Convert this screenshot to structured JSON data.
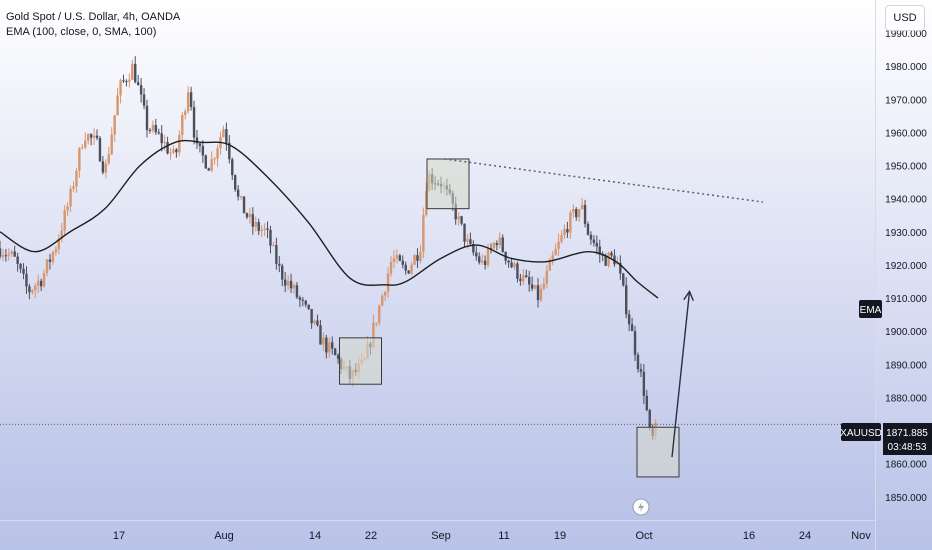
{
  "legend": {
    "symbol_line": "Gold Spot / U.S. Dollar, 4h, OANDA",
    "indicator_line": "EMA (100, close, 0, SMA, 100)"
  },
  "currency_label": "USD",
  "price_scale_labels": {
    "ema": "EMA",
    "symbol": "XAUUSD",
    "last_price": "1871.885",
    "countdown": "03:48:53"
  },
  "colors": {
    "candle_up": "#d9956b",
    "candle_down": "#4a4f5c",
    "ema_line": "#1f1f1f",
    "trendline": "#5a6070",
    "box_fill": "#d6d8c8",
    "background_top": "#ffffff",
    "background_bottom": "#b9c2e8",
    "axis_text": "#131722",
    "price_tag_bg": "#131722"
  },
  "chart_data": {
    "type": "candlestick",
    "title": "Gold Spot / U.S. Dollar, 4h, OANDA",
    "y_axis": {
      "side": "right",
      "range": [
        1843,
        2000
      ],
      "ticks": [
        "1990.000",
        "1980.000",
        "1970.000",
        "1960.000",
        "1950.000",
        "1940.000",
        "1930.000",
        "1920.000",
        "1910.000",
        "1900.000",
        "1890.000",
        "1880.000",
        "1860.000",
        "1850.000"
      ],
      "tick_values": [
        1990,
        1980,
        1970,
        1960,
        1950,
        1940,
        1930,
        1920,
        1910,
        1900,
        1890,
        1880,
        1860,
        1850
      ]
    },
    "x_axis": {
      "tick_labels": [
        "17",
        "Aug",
        "14",
        "22",
        "Sep",
        "11",
        "19",
        "Oct",
        "16",
        "24",
        "Nov"
      ],
      "tick_days": [
        17,
        32,
        45,
        53,
        63,
        72,
        80,
        92,
        107,
        115,
        123
      ],
      "range_days": [
        0,
        125
      ]
    },
    "last_price": 1871.885,
    "close_path": [
      {
        "day": 0,
        "price": 1925
      },
      {
        "day": 2,
        "price": 1922
      },
      {
        "day": 4,
        "price": 1912
      },
      {
        "day": 6,
        "price": 1916
      },
      {
        "day": 8,
        "price": 1926
      },
      {
        "day": 10,
        "price": 1940
      },
      {
        "day": 12,
        "price": 1960
      },
      {
        "day": 14,
        "price": 1956
      },
      {
        "day": 15,
        "price": 1948
      },
      {
        "day": 17,
        "price": 1973
      },
      {
        "day": 19,
        "price": 1980
      },
      {
        "day": 21,
        "price": 1962
      },
      {
        "day": 23,
        "price": 1958
      },
      {
        "day": 25,
        "price": 1952
      },
      {
        "day": 27,
        "price": 1975
      },
      {
        "day": 28,
        "price": 1955
      },
      {
        "day": 30,
        "price": 1950
      },
      {
        "day": 32,
        "price": 1962
      },
      {
        "day": 34,
        "price": 1940
      },
      {
        "day": 36,
        "price": 1932
      },
      {
        "day": 38,
        "price": 1930
      },
      {
        "day": 40,
        "price": 1918
      },
      {
        "day": 42,
        "price": 1912
      },
      {
        "day": 44,
        "price": 1905
      },
      {
        "day": 46,
        "price": 1897
      },
      {
        "day": 48,
        "price": 1892
      },
      {
        "day": 50,
        "price": 1886
      },
      {
        "day": 52,
        "price": 1890
      },
      {
        "day": 54,
        "price": 1906
      },
      {
        "day": 56,
        "price": 1922
      },
      {
        "day": 58,
        "price": 1918
      },
      {
        "day": 60,
        "price": 1925
      },
      {
        "day": 61,
        "price": 1947
      },
      {
        "day": 63,
        "price": 1945
      },
      {
        "day": 65,
        "price": 1936
      },
      {
        "day": 67,
        "price": 1925
      },
      {
        "day": 69,
        "price": 1920
      },
      {
        "day": 71,
        "price": 1928
      },
      {
        "day": 73,
        "price": 1920
      },
      {
        "day": 75,
        "price": 1915
      },
      {
        "day": 77,
        "price": 1910
      },
      {
        "day": 79,
        "price": 1922
      },
      {
        "day": 81,
        "price": 1932
      },
      {
        "day": 83,
        "price": 1938
      },
      {
        "day": 84,
        "price": 1930
      },
      {
        "day": 86,
        "price": 1922
      },
      {
        "day": 88,
        "price": 1922
      },
      {
        "day": 90,
        "price": 1902
      },
      {
        "day": 92,
        "price": 1882
      },
      {
        "day": 93,
        "price": 1866
      },
      {
        "day": 94,
        "price": 1871.885
      }
    ],
    "ema": {
      "name": "EMA",
      "points": [
        {
          "day": 0,
          "price": 1930
        },
        {
          "day": 5,
          "price": 1924
        },
        {
          "day": 10,
          "price": 1930
        },
        {
          "day": 15,
          "price": 1937
        },
        {
          "day": 20,
          "price": 1950
        },
        {
          "day": 25,
          "price": 1957
        },
        {
          "day": 29,
          "price": 1957
        },
        {
          "day": 33,
          "price": 1956
        },
        {
          "day": 38,
          "price": 1947
        },
        {
          "day": 44,
          "price": 1933
        },
        {
          "day": 50,
          "price": 1916
        },
        {
          "day": 55,
          "price": 1914
        },
        {
          "day": 58,
          "price": 1915
        },
        {
          "day": 63,
          "price": 1922
        },
        {
          "day": 68,
          "price": 1926
        },
        {
          "day": 73,
          "price": 1922
        },
        {
          "day": 78,
          "price": 1921
        },
        {
          "day": 84,
          "price": 1924
        },
        {
          "day": 88,
          "price": 1921
        },
        {
          "day": 91,
          "price": 1915
        },
        {
          "day": 94,
          "price": 1910
        }
      ]
    },
    "annotations": {
      "boxes": [
        {
          "day_start": 48.5,
          "day_end": 54.5,
          "price_top": 1898,
          "price_bottom": 1884
        },
        {
          "day_start": 61,
          "day_end": 67,
          "price_top": 1952,
          "price_bottom": 1937
        },
        {
          "day_start": 91,
          "day_end": 97,
          "price_top": 1871,
          "price_bottom": 1856
        }
      ],
      "trendline": {
        "day_start": 63.5,
        "price_start": 1952,
        "day_end": 109,
        "price_end": 1939,
        "style": "dotted"
      },
      "arrow": {
        "day_start": 96,
        "price_start": 1862,
        "day_end": 98.5,
        "price_end": 1912
      },
      "horizontal_line": {
        "price": 1871.885,
        "style": "dotted"
      }
    }
  }
}
